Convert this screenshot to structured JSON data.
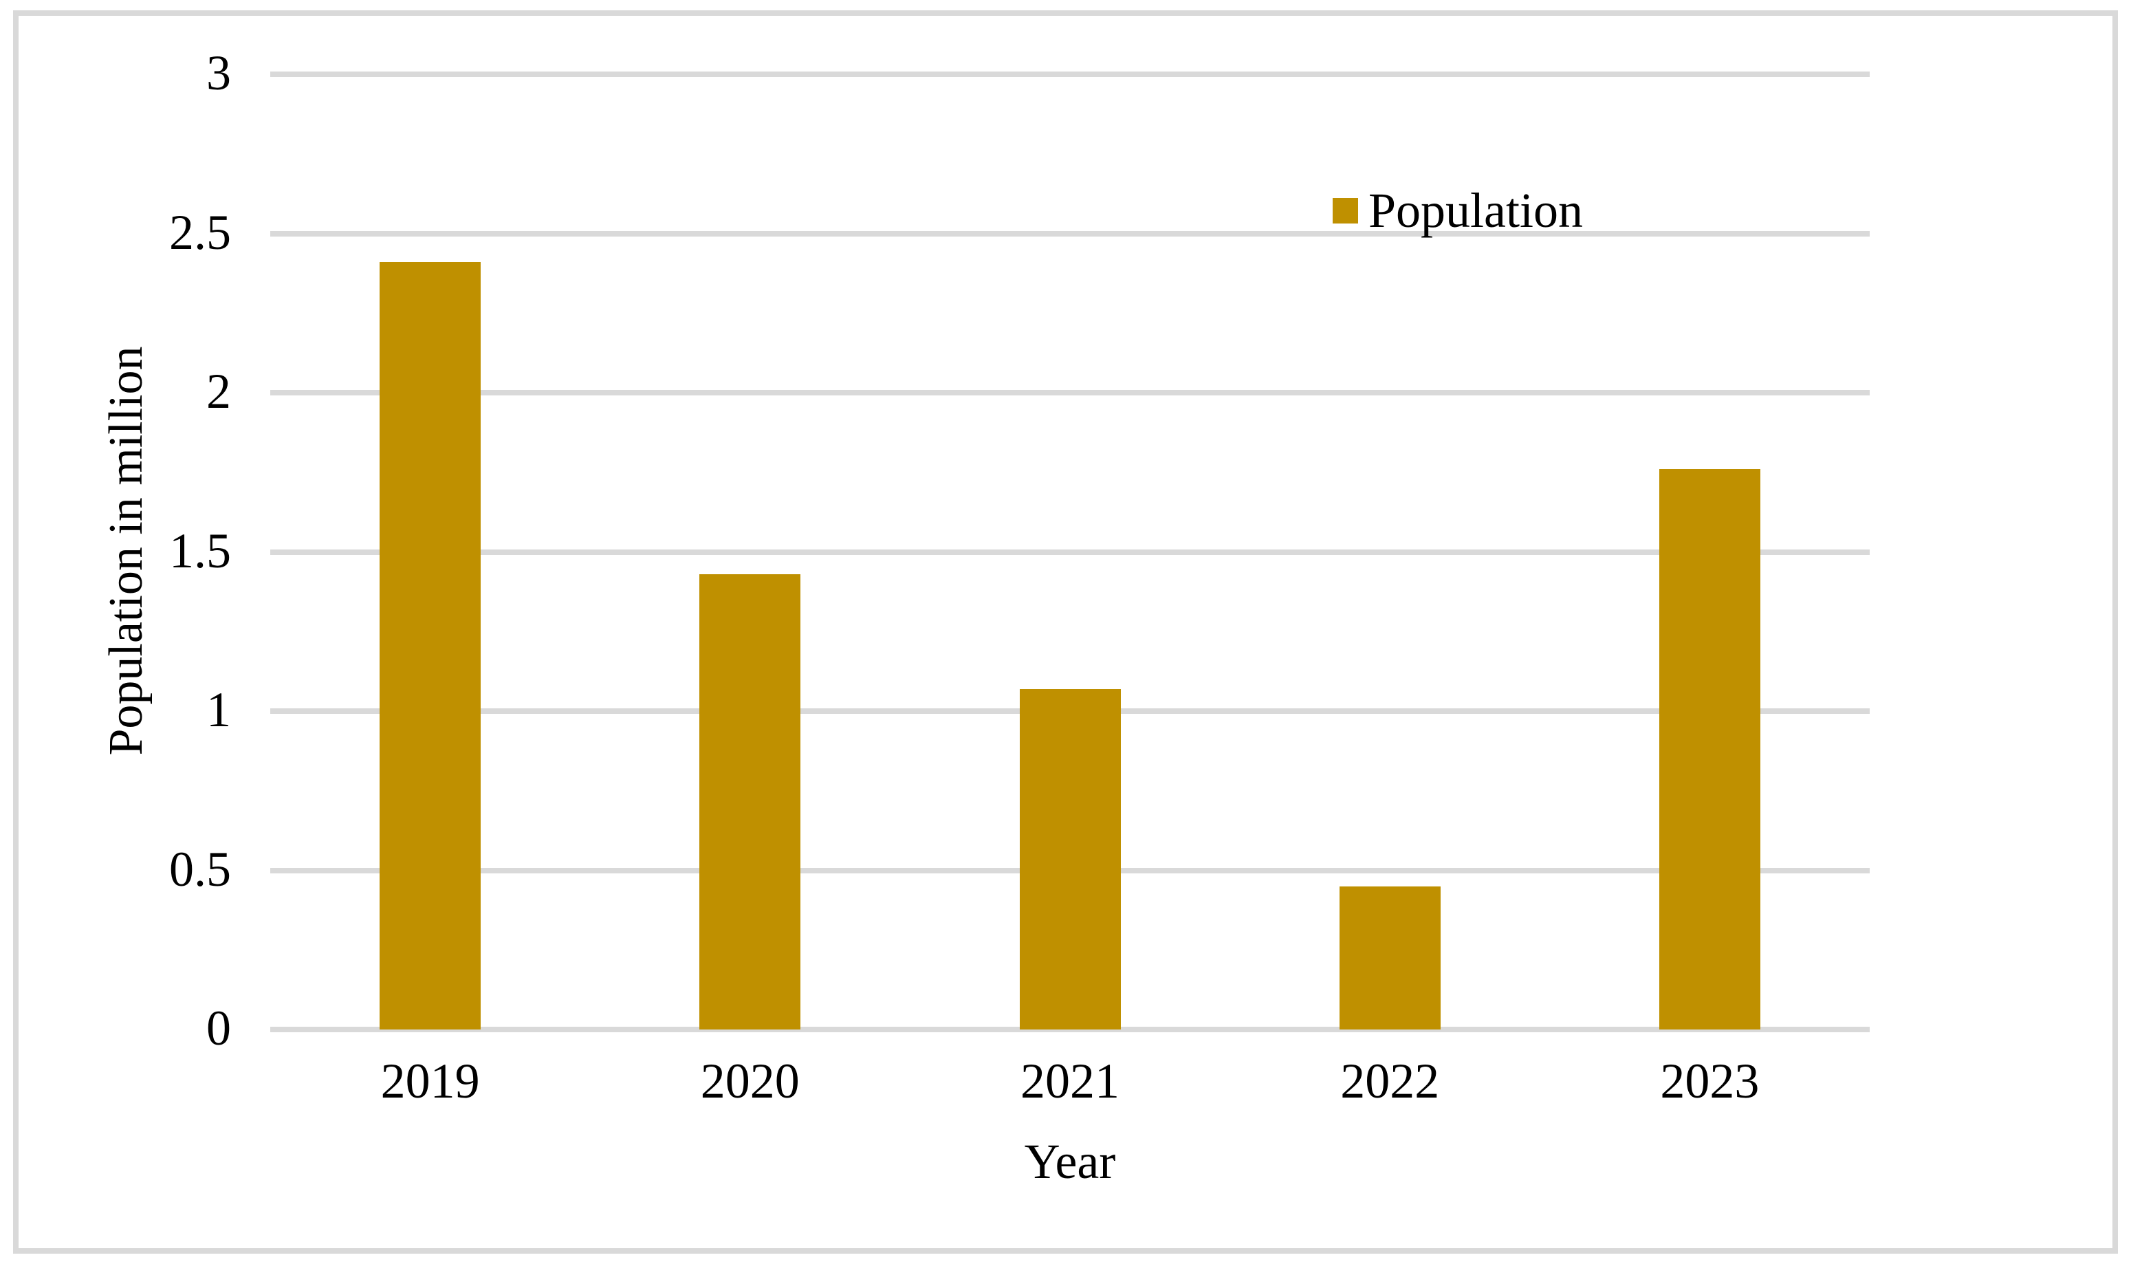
{
  "figure": {
    "background_color": "#FFFFFF",
    "border_color": "#D9D9D9"
  },
  "chart_data": {
    "type": "bar",
    "title": "",
    "categories": [
      "2019",
      "2020",
      "2021",
      "2022",
      "2023"
    ],
    "series": [
      {
        "name": "Population",
        "values": [
          2.41,
          1.43,
          1.07,
          0.45,
          1.76
        ]
      }
    ],
    "xlabel": "Year",
    "ylabel": "Population in million",
    "ylim": [
      0,
      3
    ],
    "yticks": [
      0,
      0.5,
      1,
      1.5,
      2,
      2.5,
      3
    ],
    "ytick_labels": [
      "0",
      "0.5",
      "1",
      "1.5",
      "2",
      "2.5",
      "3"
    ],
    "bar_color": "#BF9000",
    "gridline_color": "#D9D9D9",
    "grid": true,
    "legend": {
      "label": "Population",
      "position": "top-right",
      "swatch_color": "#BF9000"
    }
  }
}
